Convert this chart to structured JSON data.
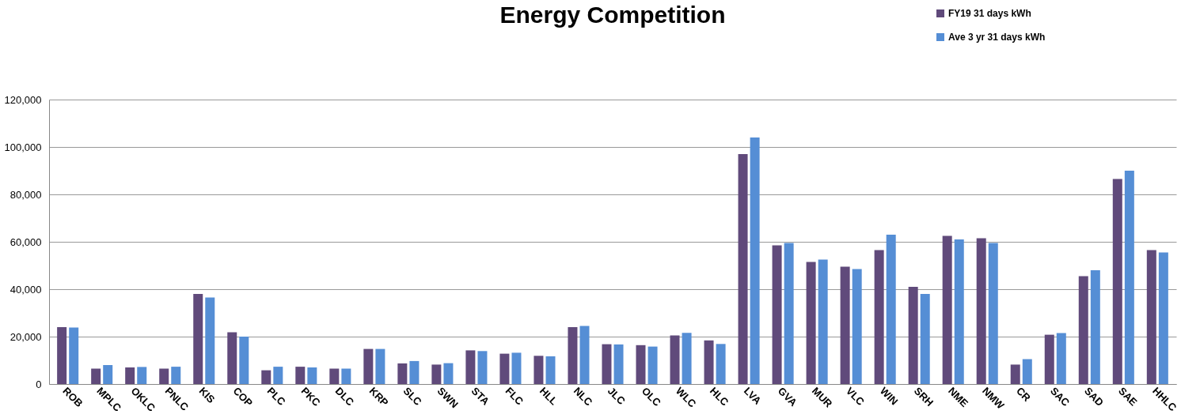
{
  "chart_data": {
    "type": "bar",
    "title": "Energy Competition",
    "categories": [
      "ROB",
      "MPLC",
      "OKLC",
      "PNLC",
      "KIS",
      "COP",
      "PLC",
      "PKC",
      "DLC",
      "KRP",
      "SLC",
      "SWN",
      "STA",
      "FLC",
      "HLL",
      "NLC",
      "JLC",
      "OLC",
      "WLC",
      "HLC",
      "LVA",
      "GVA",
      "MUR",
      "VLC",
      "WIN",
      "SRH",
      "NME",
      "NMW",
      "CR",
      "SAC",
      "SAD",
      "SAE",
      "HHLC"
    ],
    "series": [
      {
        "name": "FY19 31 days kWh",
        "color": "#604a7b",
        "values": [
          24000,
          6500,
          7000,
          6500,
          38000,
          21800,
          5800,
          7300,
          6500,
          14800,
          8700,
          8200,
          14200,
          12800,
          11900,
          24000,
          16800,
          16400,
          20500,
          18400,
          97000,
          58500,
          51500,
          49500,
          56500,
          41000,
          62500,
          61500,
          8200,
          20800,
          45500,
          86500,
          56500
        ]
      },
      {
        "name": "Ave 3 yr 31 days kWh",
        "color": "#558ed5",
        "values": [
          23800,
          8000,
          7200,
          7300,
          36500,
          20000,
          7300,
          7000,
          6500,
          14800,
          9700,
          8800,
          13900,
          13200,
          11700,
          24500,
          16700,
          15800,
          21600,
          16900,
          104000,
          59500,
          52500,
          48500,
          63000,
          38000,
          61000,
          59500,
          10500,
          21500,
          48000,
          90000,
          55500
        ]
      }
    ],
    "ylim": [
      0,
      120000
    ],
    "yticks": [
      0,
      {
        "value": 20000,
        "label": "20,000"
      },
      {
        "value": 40000,
        "label": "40,000"
      },
      {
        "value": 60000,
        "label": "60,000"
      },
      {
        "value": 80000,
        "label": "80,000"
      },
      {
        "value": 100000,
        "label": "100,000"
      },
      {
        "value": 120000,
        "label": "120,000"
      }
    ],
    "grid": "y",
    "legend": "top right"
  }
}
